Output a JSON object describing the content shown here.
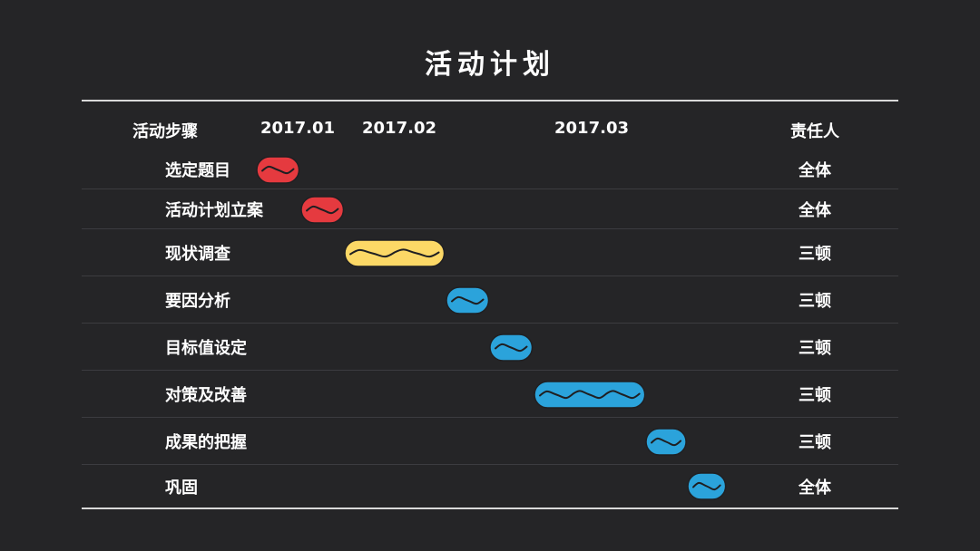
{
  "title": "活动计划",
  "header": {
    "activity": "活动步骤",
    "month1": "2017.01",
    "month2": "2017.02",
    "month3": "2017.03",
    "owner": "责任人"
  },
  "colors": {
    "red": "#e53a3f",
    "yellow": "#fcd866",
    "blue": "#2ba3db",
    "wave": "#1f1f22"
  },
  "rows": [
    {
      "label": "选定题目",
      "owner": "全体",
      "color": "red",
      "start": 0,
      "end": 1
    },
    {
      "label": "活动计划立案",
      "owner": "全体",
      "color": "red",
      "start": 1,
      "end": 2
    },
    {
      "label": "现状调查",
      "owner": "三顿",
      "color": "yellow",
      "start": 2,
      "end": 4.3
    },
    {
      "label": "要因分析",
      "owner": "三顿",
      "color": "blue",
      "start": 4.3,
      "end": 5.3
    },
    {
      "label": "目标值设定",
      "owner": "三顿",
      "color": "blue",
      "start": 5.3,
      "end": 6.3
    },
    {
      "label": "对策及改善",
      "owner": "三顿",
      "color": "blue",
      "start": 6.3,
      "end": 8.85
    },
    {
      "label": "成果的把握",
      "owner": "三顿",
      "color": "blue",
      "start": 8.85,
      "end": 9.8
    },
    {
      "label": "巩固",
      "owner": "全体",
      "color": "blue",
      "start": 9.8,
      "end": 10.7
    }
  ]
}
